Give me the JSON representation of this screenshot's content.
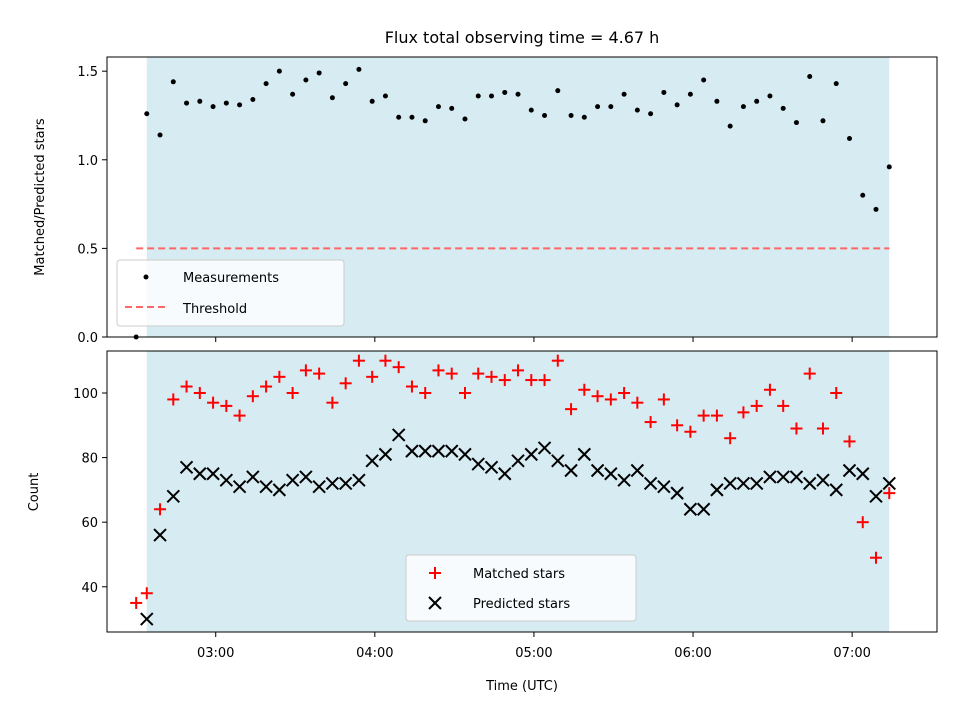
{
  "title": "Flux total observing time = 4.67 h",
  "chart_data": [
    {
      "type": "scatter",
      "panel": "top",
      "ylabel": "Matched/Predicted stars",
      "ylim": [
        0,
        1.58
      ],
      "yticks": [
        {
          "value": 0.0,
          "label": "0.0"
        },
        {
          "value": 0.5,
          "label": "0.5"
        },
        {
          "value": 1.0,
          "label": "1.0"
        },
        {
          "value": 1.5,
          "label": "1.5"
        }
      ],
      "xlim_minutes": [
        139,
        452
      ],
      "xticks": [
        {
          "minutes": 180,
          "label": "03:00"
        },
        {
          "minutes": 240,
          "label": "04:00"
        },
        {
          "minutes": 300,
          "label": "05:00"
        },
        {
          "minutes": 360,
          "label": "06:00"
        },
        {
          "minutes": 420,
          "label": "07:00"
        }
      ],
      "shaded_span_minutes": [
        154,
        434
      ],
      "shade_color": "#add8e6",
      "threshold": {
        "name": "Threshold",
        "value": 0.5,
        "x_start": 150,
        "x_end": 434,
        "color": "#ff6666"
      },
      "series": [
        {
          "name": "Measurements",
          "marker": "dot",
          "color": "#000000",
          "points": [
            [
              150,
              0.0
            ],
            [
              154,
              1.26
            ],
            [
              159,
              1.14
            ],
            [
              164,
              1.44
            ],
            [
              169,
              1.32
            ],
            [
              174,
              1.33
            ],
            [
              179,
              1.3
            ],
            [
              184,
              1.32
            ],
            [
              189,
              1.31
            ],
            [
              194,
              1.34
            ],
            [
              199,
              1.43
            ],
            [
              204,
              1.5
            ],
            [
              209,
              1.37
            ],
            [
              214,
              1.45
            ],
            [
              219,
              1.49
            ],
            [
              224,
              1.35
            ],
            [
              229,
              1.43
            ],
            [
              234,
              1.51
            ],
            [
              239,
              1.33
            ],
            [
              244,
              1.36
            ],
            [
              249,
              1.24
            ],
            [
              254,
              1.24
            ],
            [
              259,
              1.22
            ],
            [
              264,
              1.3
            ],
            [
              269,
              1.29
            ],
            [
              274,
              1.23
            ],
            [
              279,
              1.36
            ],
            [
              284,
              1.36
            ],
            [
              289,
              1.38
            ],
            [
              294,
              1.37
            ],
            [
              299,
              1.28
            ],
            [
              304,
              1.25
            ],
            [
              309,
              1.39
            ],
            [
              314,
              1.25
            ],
            [
              319,
              1.24
            ],
            [
              324,
              1.3
            ],
            [
              329,
              1.3
            ],
            [
              334,
              1.37
            ],
            [
              339,
              1.28
            ],
            [
              344,
              1.26
            ],
            [
              349,
              1.38
            ],
            [
              354,
              1.31
            ],
            [
              359,
              1.37
            ],
            [
              364,
              1.45
            ],
            [
              369,
              1.33
            ],
            [
              374,
              1.19
            ],
            [
              379,
              1.3
            ],
            [
              384,
              1.33
            ],
            [
              389,
              1.36
            ],
            [
              394,
              1.29
            ],
            [
              399,
              1.21
            ],
            [
              404,
              1.47
            ],
            [
              409,
              1.22
            ],
            [
              414,
              1.43
            ],
            [
              419,
              1.12
            ],
            [
              424,
              0.8
            ],
            [
              429,
              0.72
            ],
            [
              434,
              0.96
            ]
          ]
        }
      ],
      "legend": {
        "placement": "lower-left",
        "entries": [
          "Measurements",
          "Threshold"
        ]
      }
    },
    {
      "type": "scatter",
      "panel": "bottom",
      "xlabel": "Time (UTC)",
      "ylabel": "Count",
      "ylim": [
        26,
        113
      ],
      "yticks": [
        {
          "value": 40,
          "label": "40"
        },
        {
          "value": 60,
          "label": "60"
        },
        {
          "value": 80,
          "label": "80"
        },
        {
          "value": 100,
          "label": "100"
        }
      ],
      "xlim_minutes": [
        139,
        452
      ],
      "xticks": [
        {
          "minutes": 180,
          "label": "03:00"
        },
        {
          "minutes": 240,
          "label": "04:00"
        },
        {
          "minutes": 300,
          "label": "05:00"
        },
        {
          "minutes": 360,
          "label": "06:00"
        },
        {
          "minutes": 420,
          "label": "07:00"
        }
      ],
      "shaded_span_minutes": [
        154,
        434
      ],
      "shade_color": "#add8e6",
      "series": [
        {
          "name": "Matched stars",
          "marker": "plus",
          "color": "#ff0000",
          "points": [
            [
              150,
              35
            ],
            [
              154,
              38
            ],
            [
              159,
              64
            ],
            [
              164,
              98
            ],
            [
              169,
              102
            ],
            [
              174,
              100
            ],
            [
              179,
              97
            ],
            [
              184,
              96
            ],
            [
              189,
              93
            ],
            [
              194,
              99
            ],
            [
              199,
              102
            ],
            [
              204,
              105
            ],
            [
              209,
              100
            ],
            [
              214,
              107
            ],
            [
              219,
              106
            ],
            [
              224,
              97
            ],
            [
              229,
              103
            ],
            [
              234,
              110
            ],
            [
              239,
              105
            ],
            [
              244,
              110
            ],
            [
              249,
              108
            ],
            [
              254,
              102
            ],
            [
              259,
              100
            ],
            [
              264,
              107
            ],
            [
              269,
              106
            ],
            [
              274,
              100
            ],
            [
              279,
              106
            ],
            [
              284,
              105
            ],
            [
              289,
              104
            ],
            [
              294,
              107
            ],
            [
              299,
              104
            ],
            [
              304,
              104
            ],
            [
              309,
              110
            ],
            [
              314,
              95
            ],
            [
              319,
              101
            ],
            [
              324,
              99
            ],
            [
              329,
              98
            ],
            [
              334,
              100
            ],
            [
              339,
              97
            ],
            [
              344,
              91
            ],
            [
              349,
              98
            ],
            [
              354,
              90
            ],
            [
              359,
              88
            ],
            [
              364,
              93
            ],
            [
              369,
              93
            ],
            [
              374,
              86
            ],
            [
              379,
              94
            ],
            [
              384,
              96
            ],
            [
              389,
              101
            ],
            [
              394,
              96
            ],
            [
              399,
              89
            ],
            [
              404,
              106
            ],
            [
              409,
              89
            ],
            [
              414,
              100
            ],
            [
              419,
              85
            ],
            [
              424,
              60
            ],
            [
              429,
              49
            ],
            [
              434,
              69
            ]
          ]
        },
        {
          "name": "Predicted stars",
          "marker": "x",
          "color": "#000000",
          "points": [
            [
              154,
              30
            ],
            [
              159,
              56
            ],
            [
              164,
              68
            ],
            [
              169,
              77
            ],
            [
              174,
              75
            ],
            [
              179,
              75
            ],
            [
              184,
              73
            ],
            [
              189,
              71
            ],
            [
              194,
              74
            ],
            [
              199,
              71
            ],
            [
              204,
              70
            ],
            [
              209,
              73
            ],
            [
              214,
              74
            ],
            [
              219,
              71
            ],
            [
              224,
              72
            ],
            [
              229,
              72
            ],
            [
              234,
              73
            ],
            [
              239,
              79
            ],
            [
              244,
              81
            ],
            [
              249,
              87
            ],
            [
              254,
              82
            ],
            [
              259,
              82
            ],
            [
              264,
              82
            ],
            [
              269,
              82
            ],
            [
              274,
              81
            ],
            [
              279,
              78
            ],
            [
              284,
              77
            ],
            [
              289,
              75
            ],
            [
              294,
              79
            ],
            [
              299,
              81
            ],
            [
              304,
              83
            ],
            [
              309,
              79
            ],
            [
              314,
              76
            ],
            [
              319,
              81
            ],
            [
              324,
              76
            ],
            [
              329,
              75
            ],
            [
              334,
              73
            ],
            [
              339,
              76
            ],
            [
              344,
              72
            ],
            [
              349,
              71
            ],
            [
              354,
              69
            ],
            [
              359,
              64
            ],
            [
              364,
              64
            ],
            [
              369,
              70
            ],
            [
              374,
              72
            ],
            [
              379,
              72
            ],
            [
              384,
              72
            ],
            [
              389,
              74
            ],
            [
              394,
              74
            ],
            [
              399,
              74
            ],
            [
              404,
              72
            ],
            [
              409,
              73
            ],
            [
              414,
              70
            ],
            [
              419,
              76
            ],
            [
              424,
              75
            ],
            [
              429,
              68
            ],
            [
              434,
              72
            ]
          ]
        }
      ],
      "legend": {
        "placement": "lower-center",
        "entries": [
          "Matched stars",
          "Predicted stars"
        ]
      }
    }
  ]
}
